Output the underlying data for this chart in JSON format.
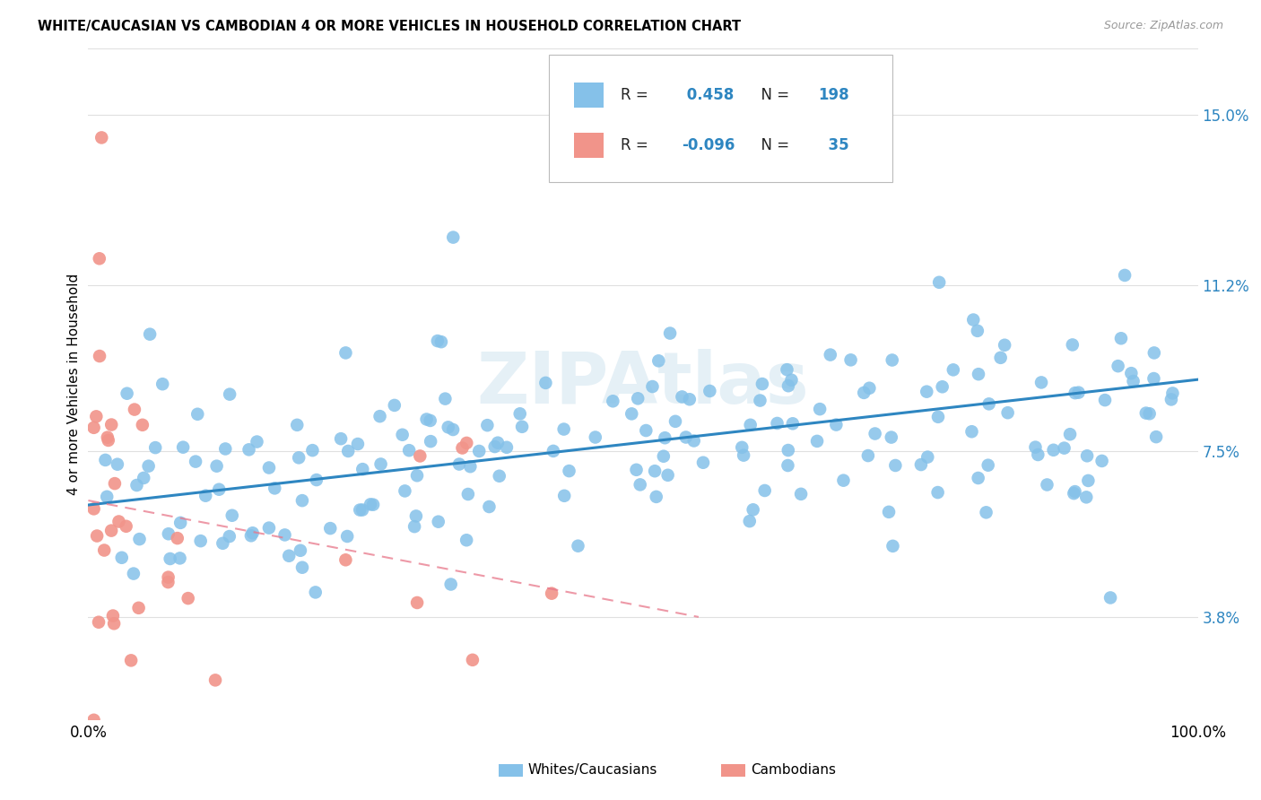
{
  "title": "WHITE/CAUCASIAN VS CAMBODIAN 4 OR MORE VEHICLES IN HOUSEHOLD CORRELATION CHART",
  "source": "Source: ZipAtlas.com",
  "ylabel": "4 or more Vehicles in Household",
  "ytick_values": [
    3.8,
    7.5,
    11.2,
    15.0
  ],
  "xlim": [
    0.0,
    100.0
  ],
  "ylim": [
    1.5,
    16.5
  ],
  "legend_blue_r": "0.458",
  "legend_blue_n": "198",
  "legend_pink_r": "-0.096",
  "legend_pink_n": "35",
  "blue_color": "#85c1e9",
  "pink_color": "#f1948a",
  "blue_line_color": "#2e86c1",
  "pink_line_color": "#e8778a",
  "watermark": "ZIPAtlas",
  "blue_line_y0": 6.3,
  "blue_line_y1": 9.1,
  "pink_line_y0": 6.4,
  "pink_line_y1": 3.8,
  "pink_line_x1": 55.0,
  "grid_color": "#e0e0e0",
  "background_color": "#ffffff",
  "blue_seed": 42,
  "pink_seed": 7
}
